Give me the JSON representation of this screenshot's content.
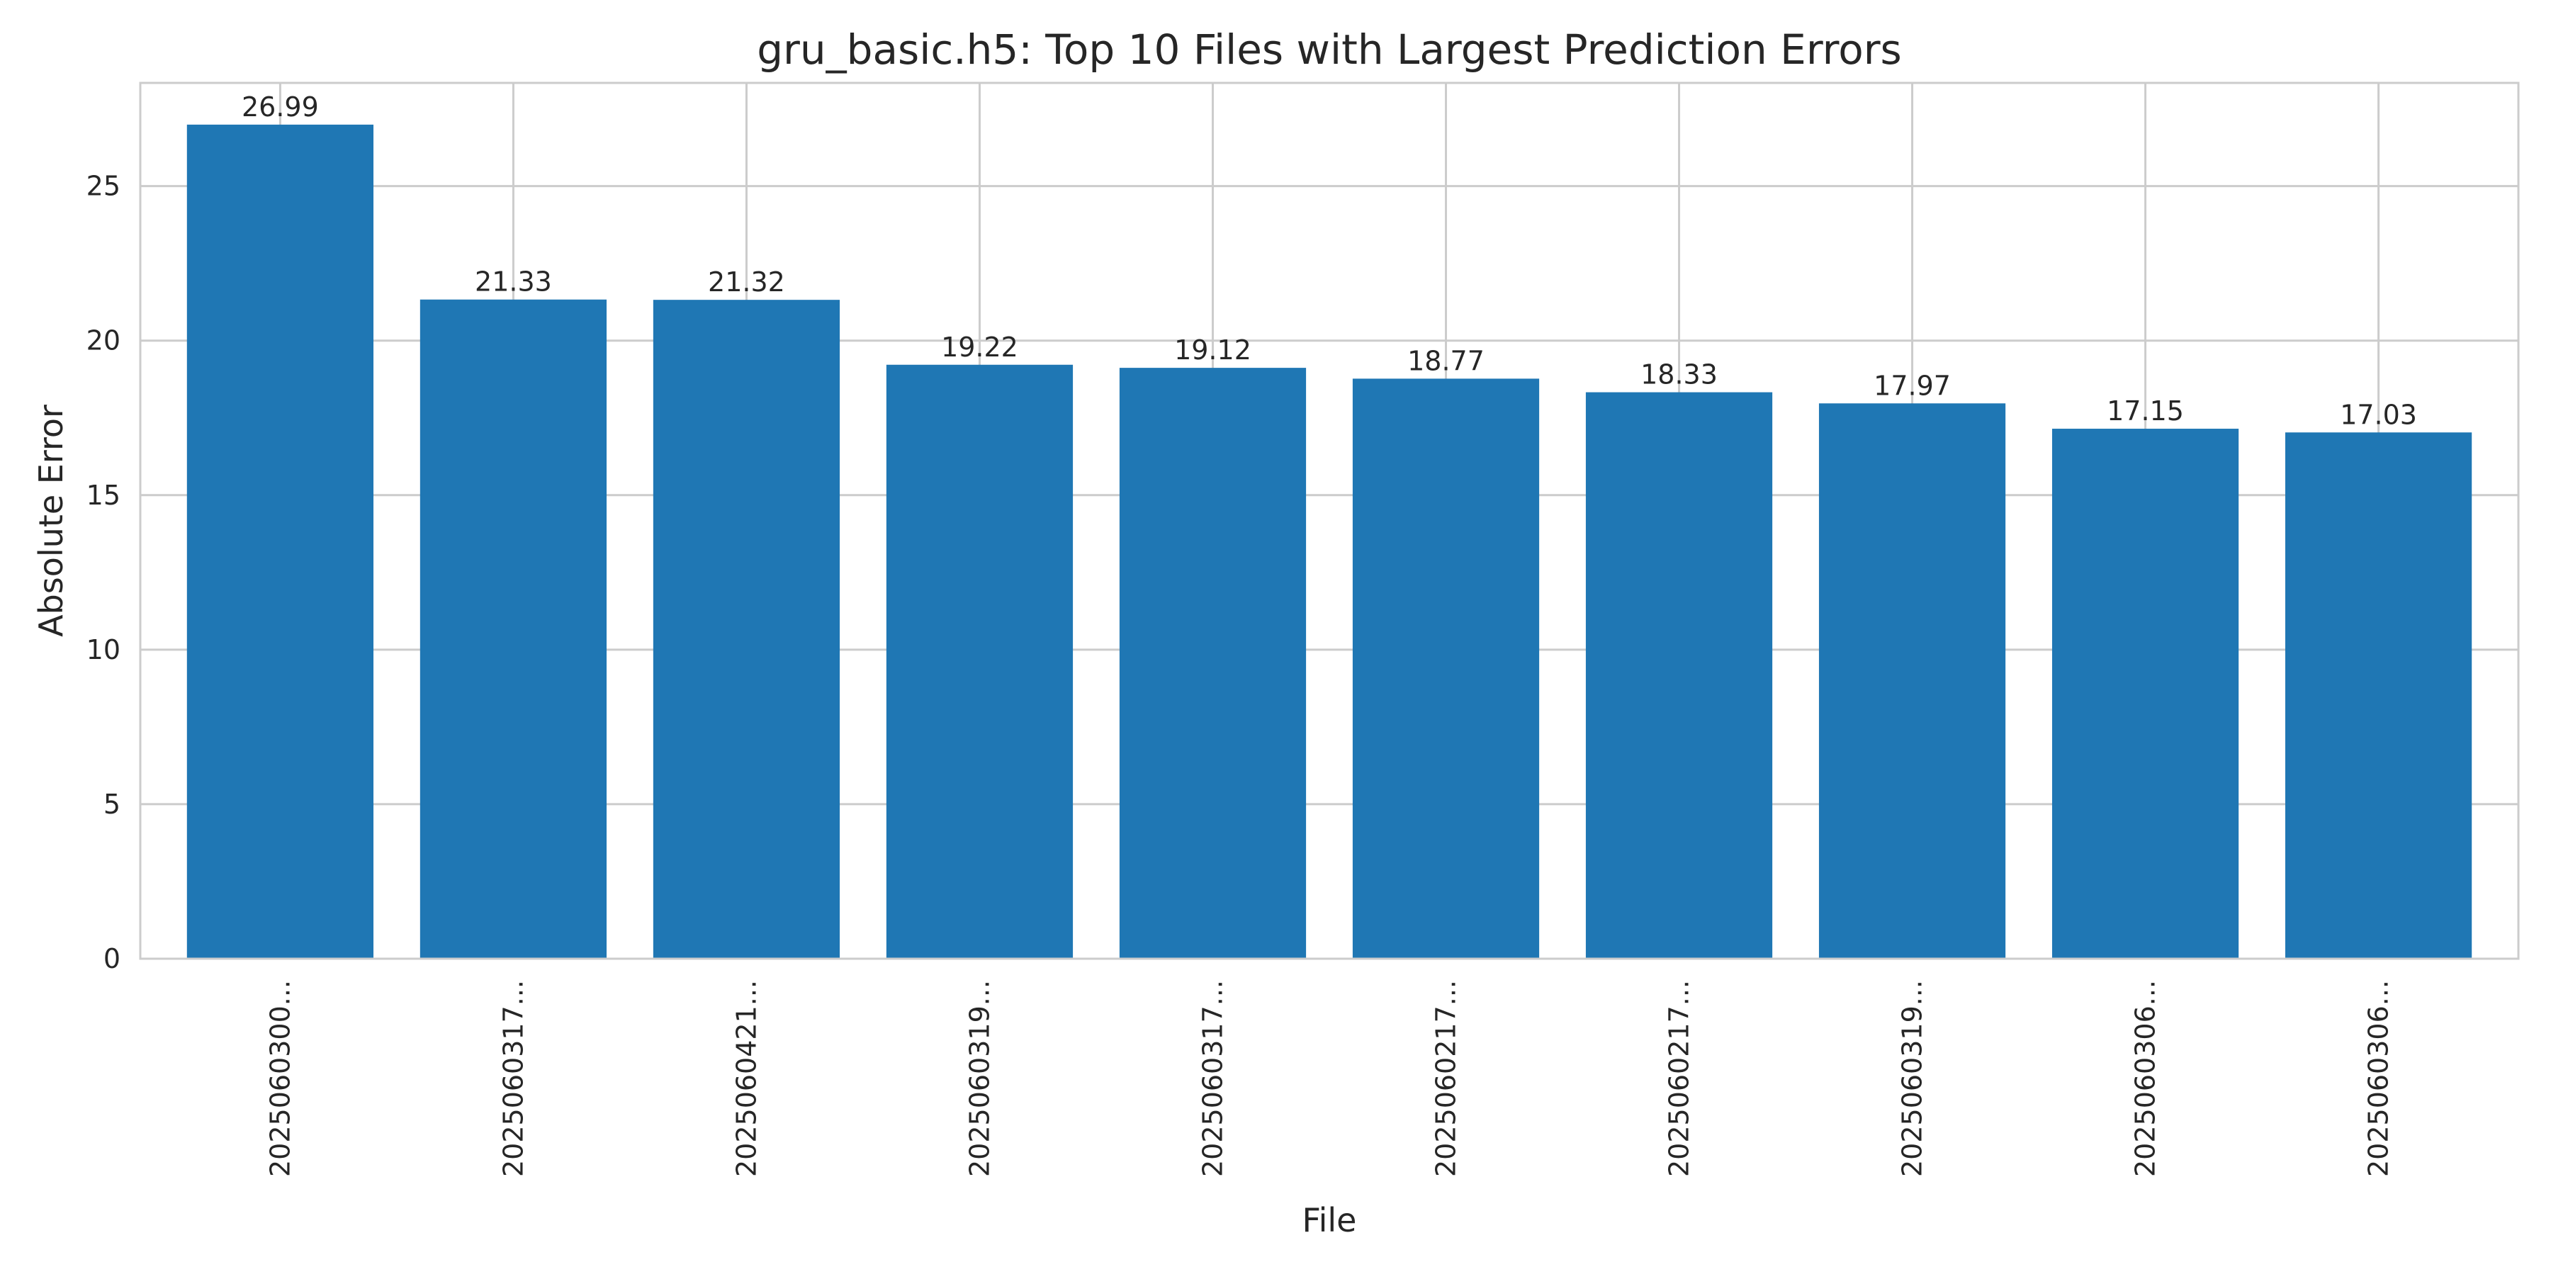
{
  "chart_data": {
    "type": "bar",
    "title": "gru_basic.h5: Top 10 Files with Largest Prediction Errors",
    "xlabel": "File",
    "ylabel": "Absolute Error",
    "categories": [
      "2025060300...",
      "2025060317...",
      "2025060421...",
      "2025060319...",
      "2025060317...",
      "2025060217...",
      "2025060217...",
      "2025060319...",
      "2025060306...",
      "2025060306..."
    ],
    "values": [
      26.99,
      21.33,
      21.32,
      19.22,
      19.12,
      18.77,
      18.33,
      17.97,
      17.15,
      17.03
    ],
    "value_labels": [
      "26.99",
      "21.33",
      "21.32",
      "19.22",
      "19.12",
      "18.77",
      "18.33",
      "17.97",
      "17.15",
      "17.03"
    ],
    "ylim": [
      0,
      28.34
    ],
    "yticks": [
      0,
      5,
      10,
      15,
      20,
      25
    ],
    "grid": true,
    "bar_color": "#1f77b4",
    "grid_color": "#cccccc"
  }
}
